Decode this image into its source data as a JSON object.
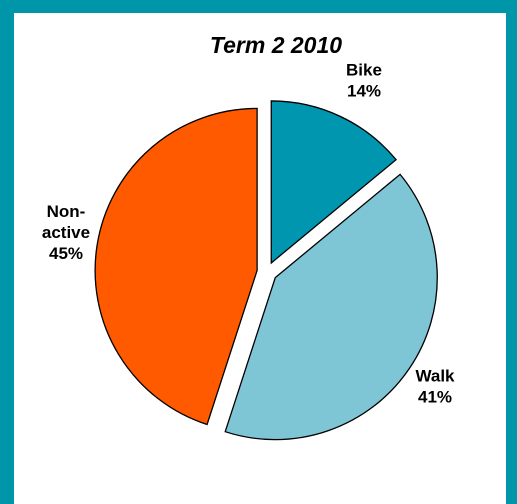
{
  "chart_data": {
    "type": "pie",
    "title": "Term 2 2010",
    "slices": [
      {
        "label": "Bike",
        "value": 14,
        "value_label": "14%",
        "color": "#0096b0",
        "exploded": true
      },
      {
        "label": "Walk",
        "value": 41,
        "value_label": "41%",
        "color": "#7ec5d5",
        "exploded": true
      },
      {
        "label": "Non-active",
        "label_lines": [
          "Non-",
          "active"
        ],
        "value": 45,
        "value_label": "45%",
        "color": "#ff5a00",
        "exploded": true
      }
    ],
    "legend": "none",
    "border_color": "#0096aa"
  }
}
